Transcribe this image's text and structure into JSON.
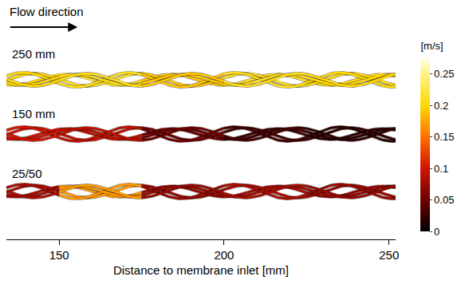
{
  "chart_data": {
    "type": "streamlines",
    "annotations": [
      "Flow direction"
    ],
    "x_label": "Distance to membrane inlet [mm]",
    "xlim": [
      134,
      252
    ],
    "xticks": [
      150,
      200,
      250
    ],
    "colorbar": {
      "title": "[m/s]",
      "range": [
        0,
        0.28
      ],
      "ticks": [
        0,
        0.05,
        0.1,
        0.15,
        0.2,
        0.25
      ]
    },
    "series": [
      {
        "name": "250 mm",
        "x": [
          134,
          150,
          175,
          200,
          225
        ],
        "values": [
          0.2,
          0.21,
          0.19,
          0.21,
          0.2
        ]
      },
      {
        "name": "150 mm",
        "x": [
          134,
          150,
          175,
          200,
          225
        ],
        "values": [
          0.1,
          0.09,
          0.05,
          0.03,
          0.02
        ]
      },
      {
        "name": "25/50",
        "x": [
          134,
          150,
          175,
          200,
          225
        ],
        "values": [
          0.08,
          0.17,
          0.07,
          0.08,
          0.07
        ]
      }
    ]
  }
}
